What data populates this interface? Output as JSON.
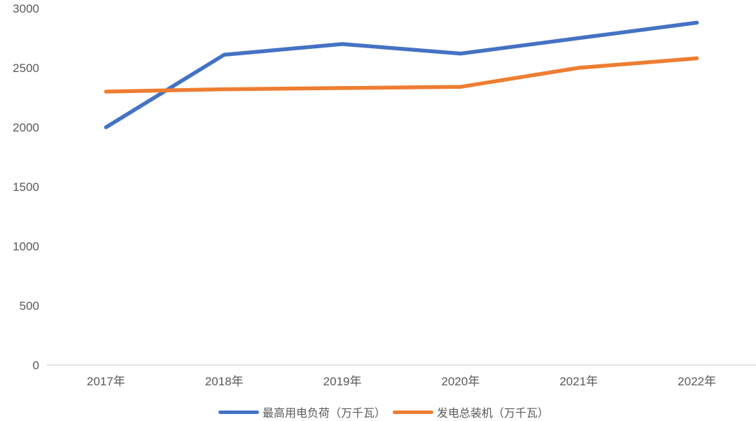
{
  "chart_data": {
    "type": "line",
    "title": "",
    "xlabel": "",
    "ylabel": "",
    "categories": [
      "2017年",
      "2018年",
      "2019年",
      "2020年",
      "2021年",
      "2022年"
    ],
    "series": [
      {
        "name": "最高用电负荷（万千瓦）",
        "color": "#4472C4",
        "values": [
          2000,
          2610,
          2700,
          2620,
          2750,
          2880
        ]
      },
      {
        "name": "发电总装机（万千瓦）",
        "color": "#ED7D31",
        "values": [
          2300,
          2320,
          2330,
          2340,
          2500,
          2580
        ]
      }
    ],
    "ylim": [
      0,
      3000
    ],
    "yticks": [
      0,
      500,
      1000,
      1500,
      2000,
      2500,
      3000
    ],
    "grid": false,
    "legend_position": "bottom",
    "axis_color": "#D9D9D9",
    "text_color": "#595959",
    "background_color": "#FFFFFF"
  }
}
